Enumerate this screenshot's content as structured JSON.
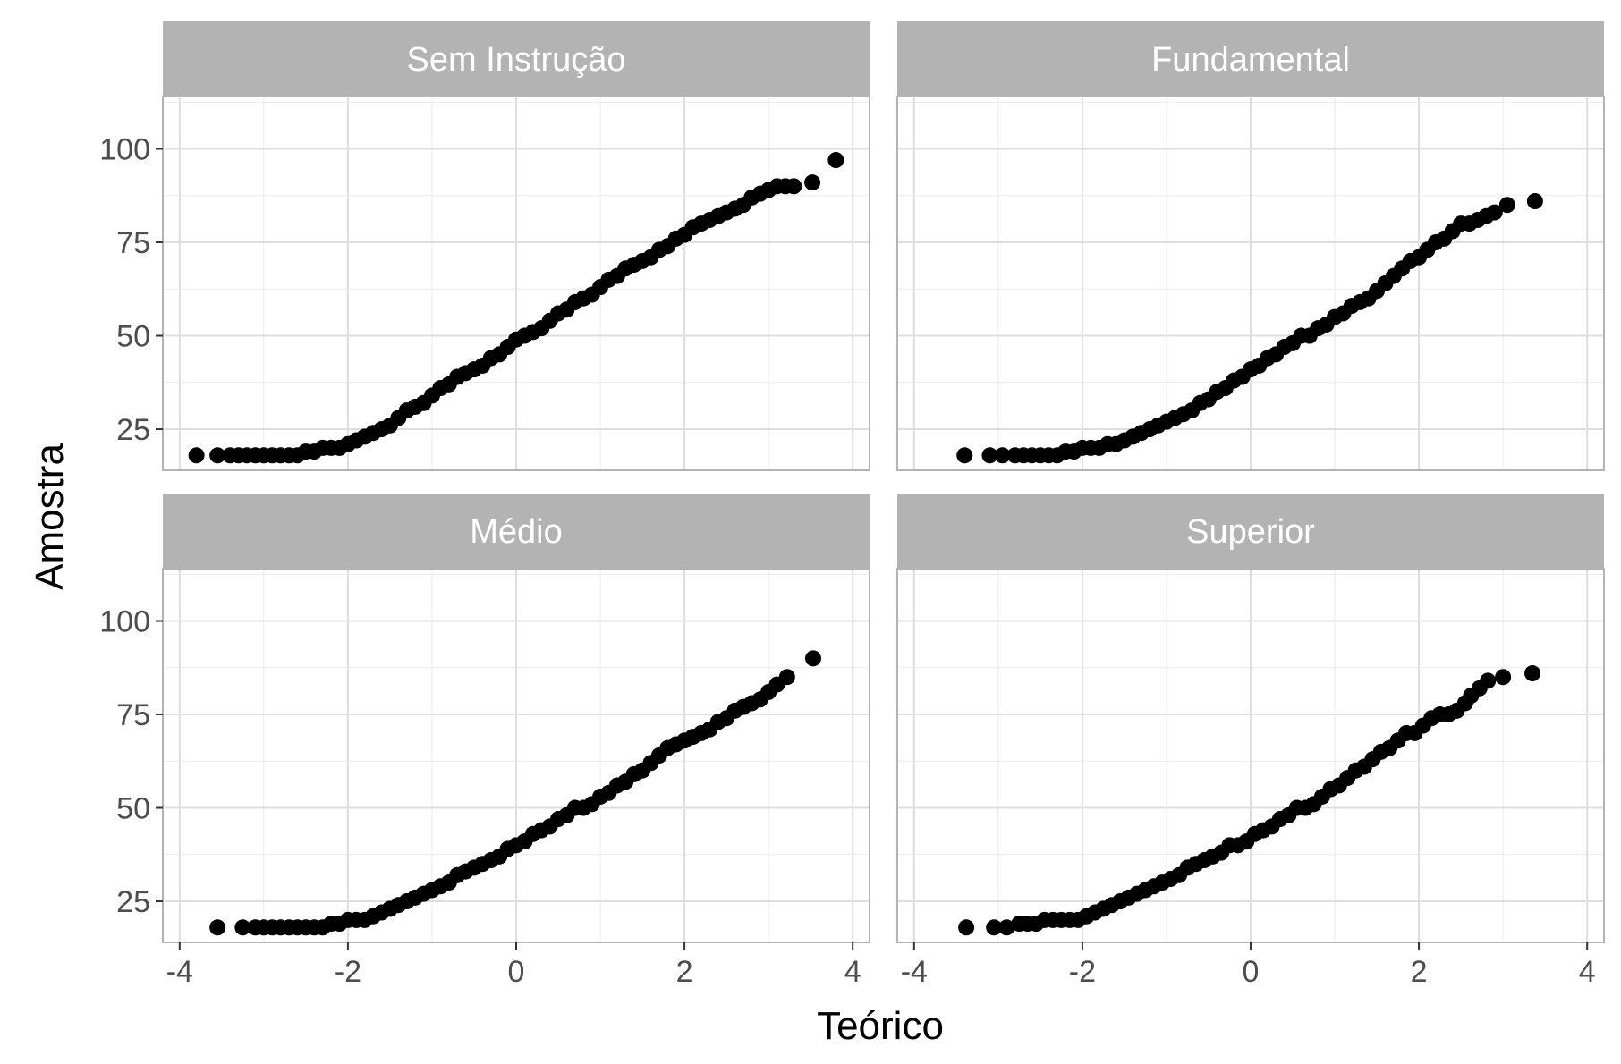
{
  "chart_data": {
    "type": "scatter",
    "xlabel": "Teórico",
    "ylabel": "Amostra",
    "xlim": [
      -4.2,
      4.2
    ],
    "ylim": [
      14,
      114
    ],
    "x_ticks": [
      -4,
      -2,
      0,
      2,
      4
    ],
    "x_tick_labels": [
      "-4",
      "-2",
      "0",
      "2",
      "4"
    ],
    "y_ticks": [
      25,
      50,
      75,
      100
    ],
    "y_tick_labels": [
      "25",
      "50",
      "75",
      "100"
    ],
    "grid": true,
    "facets": [
      {
        "label": "Sem Instrução",
        "points": [
          [
            -3.8,
            18
          ],
          [
            -3.55,
            18
          ],
          [
            -3.4,
            18
          ],
          [
            -3.3,
            18
          ],
          [
            -3.2,
            18
          ],
          [
            -3.1,
            18
          ],
          [
            -3.0,
            18
          ],
          [
            -2.9,
            18
          ],
          [
            -2.8,
            18
          ],
          [
            -2.7,
            18
          ],
          [
            -2.6,
            18
          ],
          [
            -2.5,
            19
          ],
          [
            -2.4,
            19
          ],
          [
            -2.3,
            20
          ],
          [
            -2.2,
            20
          ],
          [
            -2.1,
            20
          ],
          [
            -2.0,
            21
          ],
          [
            -1.9,
            22
          ],
          [
            -1.8,
            23
          ],
          [
            -1.7,
            24
          ],
          [
            -1.6,
            25
          ],
          [
            -1.5,
            26
          ],
          [
            -1.4,
            28
          ],
          [
            -1.3,
            30
          ],
          [
            -1.2,
            31
          ],
          [
            -1.1,
            32
          ],
          [
            -1.0,
            34
          ],
          [
            -0.9,
            36
          ],
          [
            -0.8,
            37
          ],
          [
            -0.7,
            39
          ],
          [
            -0.6,
            40
          ],
          [
            -0.5,
            41
          ],
          [
            -0.4,
            42
          ],
          [
            -0.3,
            44
          ],
          [
            -0.2,
            45
          ],
          [
            -0.1,
            47
          ],
          [
            0.0,
            49
          ],
          [
            0.1,
            50
          ],
          [
            0.2,
            51
          ],
          [
            0.3,
            52
          ],
          [
            0.4,
            54
          ],
          [
            0.5,
            56
          ],
          [
            0.6,
            57
          ],
          [
            0.7,
            59
          ],
          [
            0.8,
            60
          ],
          [
            0.9,
            61
          ],
          [
            1.0,
            63
          ],
          [
            1.1,
            65
          ],
          [
            1.2,
            66
          ],
          [
            1.3,
            68
          ],
          [
            1.4,
            69
          ],
          [
            1.5,
            70
          ],
          [
            1.6,
            71
          ],
          [
            1.7,
            73
          ],
          [
            1.8,
            74
          ],
          [
            1.9,
            76
          ],
          [
            2.0,
            77
          ],
          [
            2.1,
            79
          ],
          [
            2.2,
            80
          ],
          [
            2.3,
            81
          ],
          [
            2.4,
            82
          ],
          [
            2.5,
            83
          ],
          [
            2.6,
            84
          ],
          [
            2.7,
            85
          ],
          [
            2.8,
            87
          ],
          [
            2.9,
            88
          ],
          [
            3.0,
            89
          ],
          [
            3.1,
            90
          ],
          [
            3.2,
            90
          ],
          [
            3.3,
            90
          ],
          [
            3.52,
            91
          ],
          [
            3.8,
            97
          ]
        ]
      },
      {
        "label": "Fundamental",
        "points": [
          [
            -3.4,
            18
          ],
          [
            -3.1,
            18
          ],
          [
            -2.95,
            18
          ],
          [
            -2.8,
            18
          ],
          [
            -2.7,
            18
          ],
          [
            -2.6,
            18
          ],
          [
            -2.5,
            18
          ],
          [
            -2.4,
            18
          ],
          [
            -2.3,
            18
          ],
          [
            -2.2,
            19
          ],
          [
            -2.1,
            19
          ],
          [
            -2.0,
            20
          ],
          [
            -1.9,
            20
          ],
          [
            -1.8,
            20
          ],
          [
            -1.7,
            21
          ],
          [
            -1.6,
            21
          ],
          [
            -1.5,
            22
          ],
          [
            -1.4,
            23
          ],
          [
            -1.3,
            24
          ],
          [
            -1.2,
            25
          ],
          [
            -1.1,
            26
          ],
          [
            -1.0,
            27
          ],
          [
            -0.9,
            28
          ],
          [
            -0.8,
            29
          ],
          [
            -0.7,
            30
          ],
          [
            -0.6,
            32
          ],
          [
            -0.5,
            33
          ],
          [
            -0.4,
            35
          ],
          [
            -0.3,
            36
          ],
          [
            -0.2,
            38
          ],
          [
            -0.1,
            39
          ],
          [
            0.0,
            41
          ],
          [
            0.1,
            42
          ],
          [
            0.2,
            44
          ],
          [
            0.3,
            45
          ],
          [
            0.4,
            47
          ],
          [
            0.5,
            48
          ],
          [
            0.6,
            50
          ],
          [
            0.7,
            50
          ],
          [
            0.8,
            52
          ],
          [
            0.9,
            53
          ],
          [
            1.0,
            55
          ],
          [
            1.1,
            56
          ],
          [
            1.2,
            58
          ],
          [
            1.3,
            59
          ],
          [
            1.4,
            60
          ],
          [
            1.5,
            62
          ],
          [
            1.6,
            64
          ],
          [
            1.7,
            66
          ],
          [
            1.8,
            68
          ],
          [
            1.9,
            70
          ],
          [
            2.0,
            71
          ],
          [
            2.1,
            73
          ],
          [
            2.2,
            75
          ],
          [
            2.3,
            76
          ],
          [
            2.4,
            78
          ],
          [
            2.5,
            80
          ],
          [
            2.6,
            80
          ],
          [
            2.7,
            81
          ],
          [
            2.8,
            82
          ],
          [
            2.9,
            83
          ],
          [
            3.05,
            85
          ],
          [
            3.38,
            86
          ]
        ]
      },
      {
        "label": "Médio",
        "points": [
          [
            -3.55,
            18
          ],
          [
            -3.25,
            18
          ],
          [
            -3.1,
            18
          ],
          [
            -3.0,
            18
          ],
          [
            -2.9,
            18
          ],
          [
            -2.8,
            18
          ],
          [
            -2.7,
            18
          ],
          [
            -2.6,
            18
          ],
          [
            -2.5,
            18
          ],
          [
            -2.4,
            18
          ],
          [
            -2.3,
            18
          ],
          [
            -2.2,
            19
          ],
          [
            -2.1,
            19
          ],
          [
            -2.0,
            20
          ],
          [
            -1.9,
            20
          ],
          [
            -1.8,
            20
          ],
          [
            -1.7,
            21
          ],
          [
            -1.6,
            22
          ],
          [
            -1.5,
            23
          ],
          [
            -1.4,
            24
          ],
          [
            -1.3,
            25
          ],
          [
            -1.2,
            26
          ],
          [
            -1.1,
            27
          ],
          [
            -1.0,
            28
          ],
          [
            -0.9,
            29
          ],
          [
            -0.8,
            30
          ],
          [
            -0.7,
            32
          ],
          [
            -0.6,
            33
          ],
          [
            -0.5,
            34
          ],
          [
            -0.4,
            35
          ],
          [
            -0.3,
            36
          ],
          [
            -0.2,
            37
          ],
          [
            -0.1,
            39
          ],
          [
            0.0,
            40
          ],
          [
            0.1,
            41
          ],
          [
            0.2,
            43
          ],
          [
            0.3,
            44
          ],
          [
            0.4,
            45
          ],
          [
            0.5,
            47
          ],
          [
            0.6,
            48
          ],
          [
            0.7,
            50
          ],
          [
            0.8,
            50
          ],
          [
            0.9,
            51
          ],
          [
            1.0,
            53
          ],
          [
            1.1,
            54
          ],
          [
            1.2,
            56
          ],
          [
            1.3,
            57
          ],
          [
            1.4,
            59
          ],
          [
            1.5,
            60
          ],
          [
            1.6,
            62
          ],
          [
            1.7,
            64
          ],
          [
            1.8,
            66
          ],
          [
            1.9,
            67
          ],
          [
            2.0,
            68
          ],
          [
            2.1,
            69
          ],
          [
            2.2,
            70
          ],
          [
            2.3,
            71
          ],
          [
            2.4,
            73
          ],
          [
            2.5,
            74
          ],
          [
            2.6,
            76
          ],
          [
            2.7,
            77
          ],
          [
            2.8,
            78
          ],
          [
            2.9,
            79
          ],
          [
            3.0,
            81
          ],
          [
            3.1,
            83
          ],
          [
            3.22,
            85
          ],
          [
            3.53,
            90
          ]
        ]
      },
      {
        "label": "Superior",
        "points": [
          [
            -3.38,
            18
          ],
          [
            -3.05,
            18
          ],
          [
            -2.9,
            18
          ],
          [
            -2.75,
            19
          ],
          [
            -2.65,
            19
          ],
          [
            -2.55,
            19
          ],
          [
            -2.45,
            20
          ],
          [
            -2.35,
            20
          ],
          [
            -2.25,
            20
          ],
          [
            -2.15,
            20
          ],
          [
            -2.05,
            20
          ],
          [
            -1.95,
            21
          ],
          [
            -1.85,
            22
          ],
          [
            -1.75,
            23
          ],
          [
            -1.65,
            24
          ],
          [
            -1.55,
            25
          ],
          [
            -1.45,
            26
          ],
          [
            -1.35,
            27
          ],
          [
            -1.25,
            28
          ],
          [
            -1.15,
            29
          ],
          [
            -1.05,
            30
          ],
          [
            -0.95,
            31
          ],
          [
            -0.85,
            32
          ],
          [
            -0.75,
            34
          ],
          [
            -0.65,
            35
          ],
          [
            -0.55,
            36
          ],
          [
            -0.45,
            37
          ],
          [
            -0.35,
            38
          ],
          [
            -0.25,
            40
          ],
          [
            -0.15,
            40
          ],
          [
            -0.05,
            41
          ],
          [
            0.05,
            43
          ],
          [
            0.15,
            44
          ],
          [
            0.25,
            45
          ],
          [
            0.35,
            47
          ],
          [
            0.45,
            48
          ],
          [
            0.55,
            50
          ],
          [
            0.65,
            50
          ],
          [
            0.75,
            51
          ],
          [
            0.85,
            53
          ],
          [
            0.95,
            55
          ],
          [
            1.05,
            56
          ],
          [
            1.15,
            58
          ],
          [
            1.25,
            60
          ],
          [
            1.35,
            61
          ],
          [
            1.45,
            63
          ],
          [
            1.55,
            65
          ],
          [
            1.65,
            66
          ],
          [
            1.75,
            68
          ],
          [
            1.85,
            70
          ],
          [
            1.95,
            70
          ],
          [
            2.05,
            72
          ],
          [
            2.15,
            74
          ],
          [
            2.25,
            75
          ],
          [
            2.35,
            75
          ],
          [
            2.45,
            76
          ],
          [
            2.55,
            78
          ],
          [
            2.62,
            80
          ],
          [
            2.72,
            82
          ],
          [
            2.82,
            84
          ],
          [
            3.0,
            85
          ],
          [
            3.35,
            86
          ]
        ]
      }
    ]
  }
}
